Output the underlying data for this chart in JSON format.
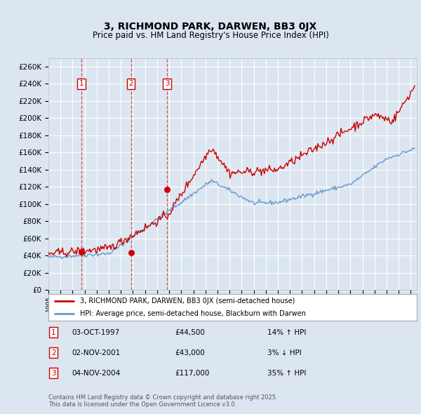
{
  "title": "3, RICHMOND PARK, DARWEN, BB3 0JX",
  "subtitle": "Price paid vs. HM Land Registry's House Price Index (HPI)",
  "ylim": [
    0,
    270000
  ],
  "yticks": [
    0,
    20000,
    40000,
    60000,
    80000,
    100000,
    120000,
    140000,
    160000,
    180000,
    200000,
    220000,
    240000,
    260000
  ],
  "xlim_start": 1995.0,
  "xlim_end": 2025.5,
  "background_color": "#dce6f1",
  "grid_color": "#ffffff",
  "sale_events": [
    {
      "label": "1",
      "year": 1997.75,
      "price": 44500
    },
    {
      "label": "2",
      "year": 2001.83,
      "price": 43000
    },
    {
      "label": "3",
      "year": 2004.83,
      "price": 117000
    }
  ],
  "legend_line1": "3, RICHMOND PARK, DARWEN, BB3 0JX (semi-detached house)",
  "legend_line2": "HPI: Average price, semi-detached house, Blackburn with Darwen",
  "footer": "Contains HM Land Registry data © Crown copyright and database right 2025.\nThis data is licensed under the Open Government Licence v3.0.",
  "red_color": "#cc0000",
  "blue_color": "#6699cc",
  "table_rows": [
    {
      "num": "1",
      "date": "03-OCT-1997",
      "price": "£44,500",
      "pct": "14% ↑ HPI"
    },
    {
      "num": "2",
      "date": "02-NOV-2001",
      "price": "£43,000",
      "pct": "3% ↓ HPI"
    },
    {
      "num": "3",
      "date": "04-NOV-2004",
      "price": "£117,000",
      "pct": "35% ↑ HPI"
    }
  ]
}
